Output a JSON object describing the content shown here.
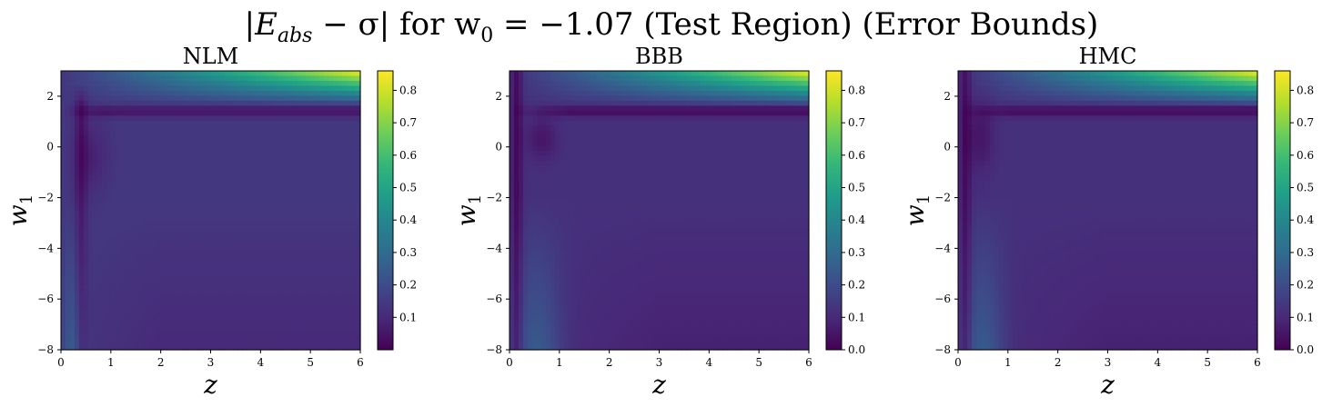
{
  "title_parts": {
    "main": "|E",
    "sub": "abs",
    "mid": " − σ| for w",
    "sub0": "0",
    "tail": " = −1.07 (Test Region) (Error Bounds)"
  },
  "colors": {
    "viridis": [
      "#440154",
      "#482878",
      "#3e4989",
      "#31688e",
      "#26828e",
      "#1f9e89",
      "#35b779",
      "#6ece58",
      "#b5de2b",
      "#fde725"
    ]
  },
  "chart_data": [
    {
      "type": "heatmap",
      "title": "NLM",
      "xlabel": "z",
      "ylabel": "w",
      "ylabel_sub": "1",
      "xlim": [
        0,
        6
      ],
      "ylim": [
        -8,
        3
      ],
      "x_ticks": [
        "0",
        "1",
        "2",
        "3",
        "4",
        "5",
        "6"
      ],
      "y_ticks": [
        "−8",
        "−6",
        "−4",
        "−2",
        "0",
        "2"
      ],
      "y_tick_values": [
        -8,
        -6,
        -4,
        -2,
        0,
        2
      ],
      "colorbar_range": [
        0.0,
        0.86
      ],
      "colorbar_ticks": [
        "0.1",
        "0.2",
        "0.3",
        "0.4",
        "0.5",
        "0.6",
        "0.7",
        "0.8"
      ],
      "colorbar_tick_values": [
        0.1,
        0.2,
        0.3,
        0.4,
        0.5,
        0.6,
        0.7,
        0.8
      ],
      "grid": false
    },
    {
      "type": "heatmap",
      "title": "BBB",
      "xlabel": "z",
      "ylabel": "w",
      "ylabel_sub": "1",
      "xlim": [
        0,
        6
      ],
      "ylim": [
        -8,
        3
      ],
      "x_ticks": [
        "0",
        "1",
        "2",
        "3",
        "4",
        "5",
        "6"
      ],
      "y_ticks": [
        "−8",
        "−6",
        "−4",
        "−2",
        "0",
        "2"
      ],
      "y_tick_values": [
        -8,
        -6,
        -4,
        -2,
        0,
        2
      ],
      "colorbar_range": [
        0.0,
        0.86
      ],
      "colorbar_ticks": [
        "0.0",
        "0.1",
        "0.2",
        "0.3",
        "0.4",
        "0.5",
        "0.6",
        "0.7",
        "0.8"
      ],
      "colorbar_tick_values": [
        0.0,
        0.1,
        0.2,
        0.3,
        0.4,
        0.5,
        0.6,
        0.7,
        0.8
      ],
      "grid": false
    },
    {
      "type": "heatmap",
      "title": "HMC",
      "xlabel": "z",
      "ylabel": "w",
      "ylabel_sub": "1",
      "xlim": [
        0,
        6
      ],
      "ylim": [
        -8,
        3
      ],
      "x_ticks": [
        "0",
        "1",
        "2",
        "3",
        "4",
        "5",
        "6"
      ],
      "y_ticks": [
        "−8",
        "−6",
        "−4",
        "−2",
        "0",
        "2"
      ],
      "y_tick_values": [
        -8,
        -6,
        -4,
        -2,
        0,
        2
      ],
      "colorbar_range": [
        0.0,
        0.86
      ],
      "colorbar_ticks": [
        "0.0",
        "0.1",
        "0.2",
        "0.3",
        "0.4",
        "0.5",
        "0.6",
        "0.7",
        "0.8"
      ],
      "colorbar_tick_values": [
        0.0,
        0.1,
        0.2,
        0.3,
        0.4,
        0.5,
        0.6,
        0.7,
        0.8
      ],
      "grid": false
    }
  ]
}
